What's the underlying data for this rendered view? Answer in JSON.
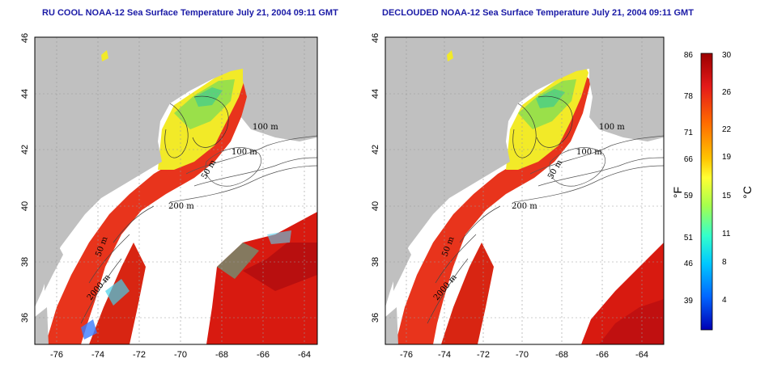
{
  "panels": [
    {
      "id": "left",
      "title": "RU COOL NOAA-12 Sea Surface Temperature July 21, 2004 09:11 GMT",
      "clouds": true
    },
    {
      "id": "right",
      "title": "DECLOUDED NOAA-12 Sea Surface Temperature July 21, 2004 09:11 GMT",
      "clouds": false
    }
  ],
  "axes": {
    "x_ticks": [
      "-76",
      "-74",
      "-72",
      "-70",
      "-68",
      "-66",
      "-64"
    ],
    "y_ticks": [
      "46",
      "44",
      "42",
      "40",
      "38",
      "36"
    ]
  },
  "contour_labels": [
    "100 m",
    "100 m",
    "50 m",
    "200 m",
    "50 m",
    "2000 m"
  ],
  "colorbar": {
    "fahrenheit_ticks": [
      "86",
      "78",
      "71",
      "66",
      "59",
      "51",
      "46",
      "39"
    ],
    "celsius_ticks": [
      "30",
      "26",
      "22",
      "19",
      "15",
      "11",
      "8",
      "4"
    ],
    "fahrenheit_unit": "°F",
    "celsius_unit": "°C",
    "gradient": [
      "#9b0000",
      "#e41a1a",
      "#ff6a00",
      "#ffc400",
      "#ffff33",
      "#a6ff4d",
      "#33ffcc",
      "#00c8ff",
      "#0066ff",
      "#0000b4"
    ]
  },
  "colors": {
    "land": "#c0c0c0",
    "warm": "#e8301c",
    "hot": "#c81010",
    "cool_yellow": "#f2ea28",
    "cool_green": "#9ae04a",
    "title": "#1a1aa6"
  }
}
